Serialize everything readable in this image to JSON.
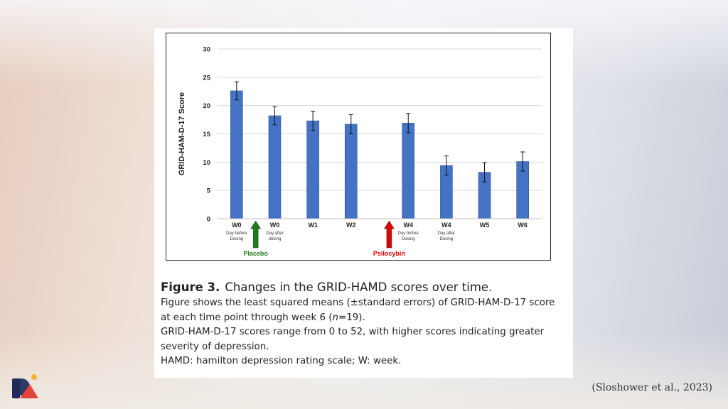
{
  "figure": {
    "label": "Figure 3.",
    "title": "Changes in the GRID-HAMD scores over time.",
    "caption_line1_pre": "Figure shows the least squared means (±standard errors) of GRID-HAM-D-17 score",
    "caption_line2_pre": "at each time point through week 6 (",
    "caption_line2_italic": "n",
    "caption_line2_post": "=19).",
    "caption_line3": "GRID-HAM-D-17 scores range from 0 to 52, with higher scores indicating greater",
    "caption_line4": "severity of depression.",
    "caption_line5": "HAMD: hamilton depression rating scale; W: week."
  },
  "citation": "(Sloshower et al., 2023)",
  "colors": {
    "bar": "#4472c4",
    "bar_edge": "#2f5597",
    "placebo_arrow": "#1f7a1f",
    "psilocybin_arrow": "#e00000",
    "grid": "#d9d9d9",
    "logo_blue": "#1e2a5a",
    "logo_red": "#e2433a",
    "logo_yellow": "#f2b233"
  },
  "chart_data": {
    "type": "bar",
    "title": "",
    "xlabel": "",
    "ylabel": "GRID-HAM-D-17 Score",
    "ylim": [
      0,
      30
    ],
    "yticks": [
      0,
      5,
      10,
      15,
      20,
      25,
      30
    ],
    "grid": true,
    "legend": "none",
    "categories": [
      {
        "label": "W0",
        "sub": [
          "Day before",
          "Dosing"
        ]
      },
      {
        "label": "W0",
        "sub": [
          "Day after",
          "dosing"
        ]
      },
      {
        "label": "W1",
        "sub": []
      },
      {
        "label": "W2",
        "sub": []
      },
      {
        "label": "W4",
        "sub": [
          "Day before",
          "Dosing"
        ]
      },
      {
        "label": "W4",
        "sub": [
          "Day after",
          "Dosing"
        ]
      },
      {
        "label": "W5",
        "sub": []
      },
      {
        "label": "W6",
        "sub": []
      }
    ],
    "x_slots": [
      1,
      2,
      3,
      4,
      5.5,
      6.5,
      7.5,
      8.5
    ],
    "x_domain": [
      0.5,
      9
    ],
    "values": [
      22.6,
      18.2,
      17.3,
      16.7,
      16.9,
      9.4,
      8.2,
      10.1
    ],
    "errors": [
      1.6,
      1.6,
      1.7,
      1.7,
      1.7,
      1.7,
      1.7,
      1.7
    ],
    "annotations": [
      {
        "text": "Placebo",
        "x_slot": 1.5,
        "color_key": "placebo_arrow"
      },
      {
        "text": "Psilocybin",
        "x_slot": 5.0,
        "color_key": "psilocybin_arrow"
      }
    ]
  }
}
